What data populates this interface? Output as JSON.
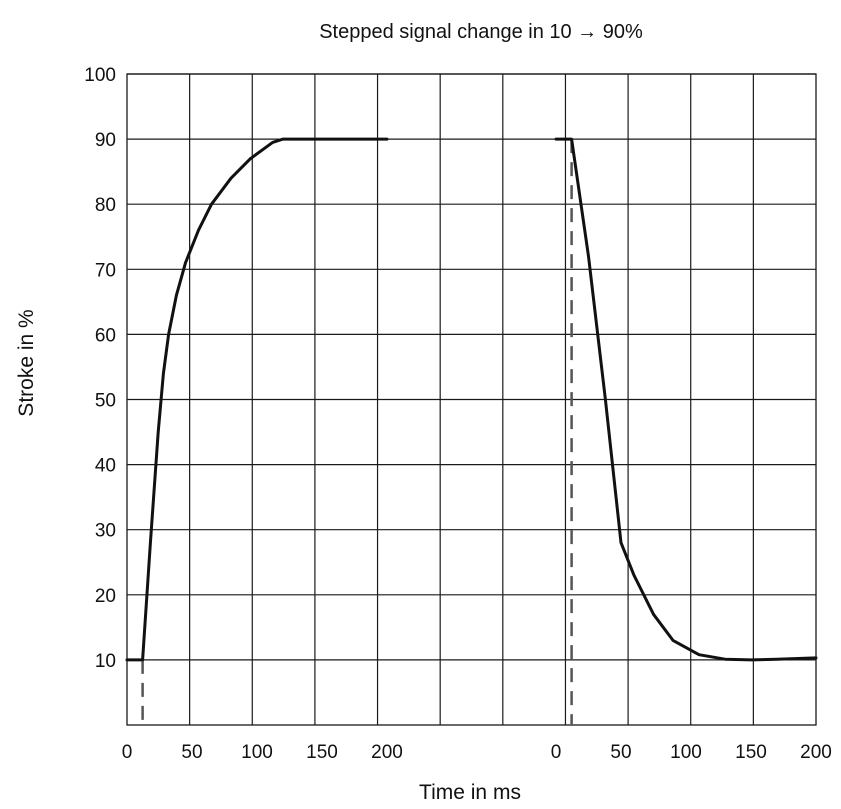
{
  "chart_data": {
    "type": "line",
    "title": "Stepped signal change in 10 → 90%",
    "xlabel": "Time in ms",
    "ylabel": "Stroke in %",
    "ylim": [
      0,
      100
    ],
    "y_ticks": [
      "10",
      "20",
      "30",
      "40",
      "50",
      "60",
      "70",
      "80",
      "90",
      "100"
    ],
    "grid": true,
    "legend": "none",
    "panels": [
      {
        "name": "",
        "xlim": [
          0,
          200
        ],
        "x_ticks": [
          "0",
          "50",
          "100",
          "150",
          "200"
        ],
        "marker_x": 12,
        "points": [
          [
            0,
            10
          ],
          [
            12,
            10
          ],
          [
            18,
            28
          ],
          [
            24,
            45
          ],
          [
            28,
            54
          ],
          [
            32,
            60
          ],
          [
            38,
            66
          ],
          [
            45,
            71
          ],
          [
            55,
            76
          ],
          [
            65,
            80
          ],
          [
            80,
            84
          ],
          [
            95,
            87
          ],
          [
            112,
            89.5
          ],
          [
            120,
            90
          ],
          [
            200,
            90
          ]
        ]
      },
      {
        "name": "",
        "xlim": [
          0,
          200
        ],
        "x_ticks": [
          "0",
          "50",
          "100",
          "150",
          "200"
        ],
        "marker_x": 12,
        "points": [
          [
            0,
            90
          ],
          [
            12,
            90
          ],
          [
            25,
            72
          ],
          [
            38,
            50
          ],
          [
            50,
            28
          ],
          [
            60,
            23
          ],
          [
            75,
            17
          ],
          [
            90,
            13
          ],
          [
            110,
            10.8
          ],
          [
            130,
            10.1
          ],
          [
            150,
            10
          ],
          [
            170,
            10.1
          ],
          [
            200,
            10.3
          ]
        ]
      }
    ]
  }
}
